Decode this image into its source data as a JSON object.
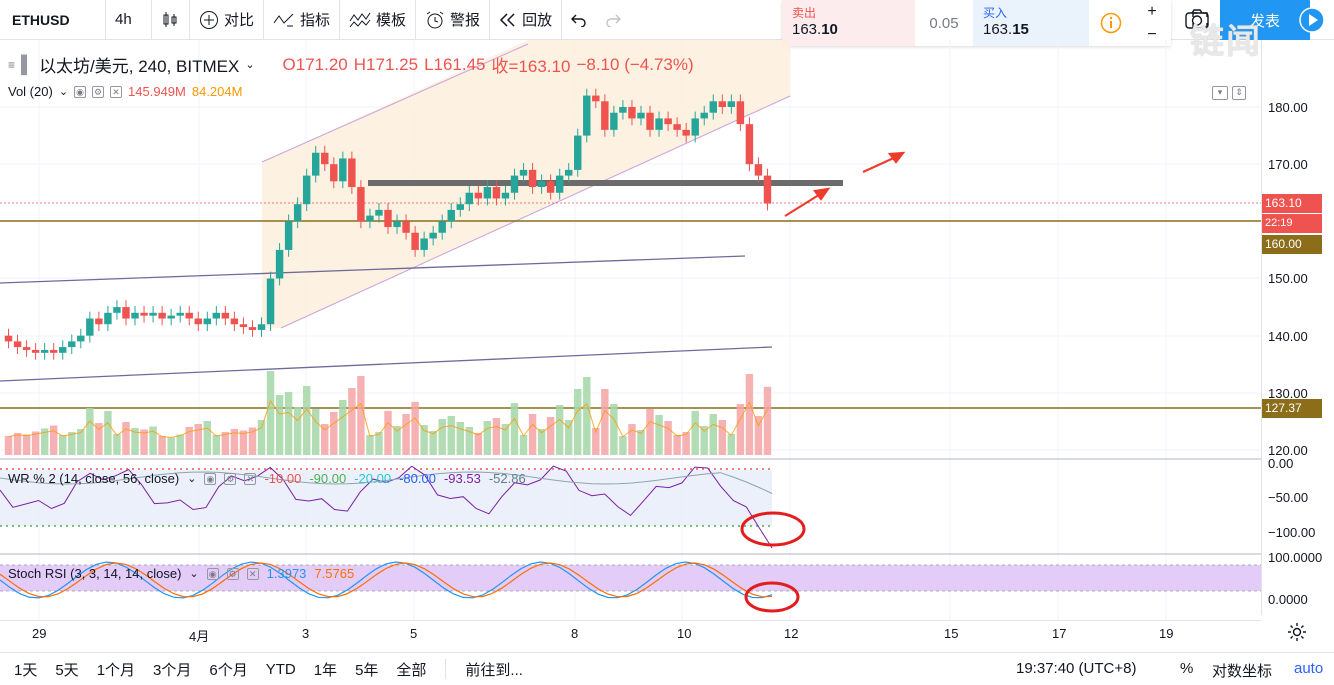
{
  "toolbar": {
    "symbol": "ETHUSD",
    "interval": "4h",
    "compare": "对比",
    "indicators": "指标",
    "templates": "模板",
    "alert": "警报",
    "replay": "回放"
  },
  "trade": {
    "sell_label": "卖出",
    "sell_price_main": "163.",
    "sell_price_tail": "10",
    "spread": "0.05",
    "buy_label": "买入",
    "buy_price_main": "163.",
    "buy_price_tail": "15",
    "post_label": "发表"
  },
  "legend": {
    "title": "以太坊/美元, 240, BITMEX",
    "o": "O171.20",
    "h": "H171.25",
    "l": "L161.45",
    "c": "收=163.10",
    "chg": "−8.10 (−4.73%)",
    "vol_label": "Vol (20)",
    "vol1": "145.949M",
    "vol2": "84.204M"
  },
  "wr": {
    "label": "WR % 2 (14, close, 56, close)",
    "v1": "-10.00",
    "v2": "-90.00",
    "v3": "-20.00",
    "v4": "-80.00",
    "v5": "-93.53",
    "v6": "-52.86"
  },
  "stoch": {
    "label": "Stoch RSI (3, 3, 14, 14, close)",
    "k": "1.3973",
    "d": "7.5765"
  },
  "price_axis": {
    "ticks": [
      "180.00",
      "170.00",
      "150.00",
      "140.00",
      "130.00",
      "120.00"
    ],
    "tag_price": "163.10",
    "tag_time": "22:19",
    "tag_160": "160.00",
    "tag_127": "127.37",
    "wr_ticks": [
      "0.00",
      "−50.00",
      "−100.00"
    ],
    "stoch_ticks": [
      "100.0000",
      "0.0000"
    ]
  },
  "time_axis": [
    "29",
    "4月",
    "3",
    "5",
    "8",
    "10",
    "12",
    "15",
    "17",
    "19"
  ],
  "bottom": {
    "ranges": [
      "1天",
      "5天",
      "1个月",
      "3个月",
      "6个月",
      "YTD",
      "1年",
      "5年",
      "全部"
    ],
    "goto": "前往到...",
    "clock": "19:37:40 (UTC+8)",
    "pct": "%",
    "log": "对数坐标",
    "auto": "auto"
  },
  "watermark": "链闻",
  "colors": {
    "up": "#26a69a",
    "down": "#ef5350",
    "gold": "#8b6d1a",
    "channel": "#b39ddb"
  }
}
